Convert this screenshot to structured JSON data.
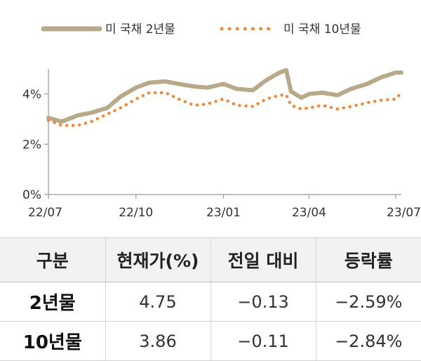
{
  "chart_data": {
    "type": "line",
    "x_ticks": [
      "22/07",
      "22/10",
      "23/01",
      "23/04",
      "23/07"
    ],
    "y_ticks": [
      "0%",
      "2%",
      "4%"
    ],
    "ylim": [
      0,
      5
    ],
    "legend_position": "top",
    "series": [
      {
        "name": "미 국채 2년물",
        "color": "#b8a98a",
        "style": "solid",
        "x": [
          "2022-07-01",
          "2022-07-15",
          "2022-08-01",
          "2022-08-15",
          "2022-09-01",
          "2022-09-15",
          "2022-10-01",
          "2022-10-15",
          "2022-11-01",
          "2022-11-15",
          "2022-12-01",
          "2022-12-15",
          "2023-01-01",
          "2023-01-15",
          "2023-02-01",
          "2023-02-15",
          "2023-03-01",
          "2023-03-08",
          "2023-03-13",
          "2023-03-24",
          "2023-04-01",
          "2023-04-15",
          "2023-05-01",
          "2023-05-15",
          "2023-06-01",
          "2023-06-15",
          "2023-07-01",
          "2023-07-07"
        ],
        "values": [
          3.05,
          2.9,
          3.15,
          3.25,
          3.45,
          3.9,
          4.25,
          4.45,
          4.5,
          4.4,
          4.3,
          4.25,
          4.4,
          4.2,
          4.15,
          4.55,
          4.85,
          4.95,
          4.1,
          3.85,
          4.0,
          4.05,
          3.95,
          4.2,
          4.4,
          4.65,
          4.85,
          4.85
        ]
      },
      {
        "name": "미 국채 10년물",
        "color": "#ec8a3d",
        "style": "dotted",
        "x": [
          "2022-07-01",
          "2022-07-15",
          "2022-08-01",
          "2022-08-15",
          "2022-09-01",
          "2022-09-15",
          "2022-10-01",
          "2022-10-15",
          "2022-11-01",
          "2022-11-15",
          "2022-12-01",
          "2022-12-15",
          "2023-01-01",
          "2023-01-15",
          "2023-02-01",
          "2023-02-15",
          "2023-03-01",
          "2023-03-08",
          "2023-03-13",
          "2023-03-24",
          "2023-04-01",
          "2023-04-15",
          "2023-05-01",
          "2023-05-15",
          "2023-06-01",
          "2023-06-15",
          "2023-07-01",
          "2023-07-07"
        ],
        "values": [
          2.95,
          2.75,
          2.75,
          2.9,
          3.2,
          3.45,
          3.8,
          4.05,
          4.05,
          3.8,
          3.55,
          3.6,
          3.8,
          3.55,
          3.5,
          3.8,
          3.95,
          3.97,
          3.55,
          3.4,
          3.45,
          3.55,
          3.4,
          3.5,
          3.65,
          3.75,
          3.8,
          4.05
        ]
      }
    ]
  },
  "table": {
    "headers": [
      "구분",
      "현재가(%)",
      "전일 대비",
      "등락률"
    ],
    "rows": [
      [
        "2년물",
        "4.75",
        "−0.13",
        "−2.59%"
      ],
      [
        "10년물",
        "3.86",
        "−0.11",
        "−2.84%"
      ]
    ]
  }
}
